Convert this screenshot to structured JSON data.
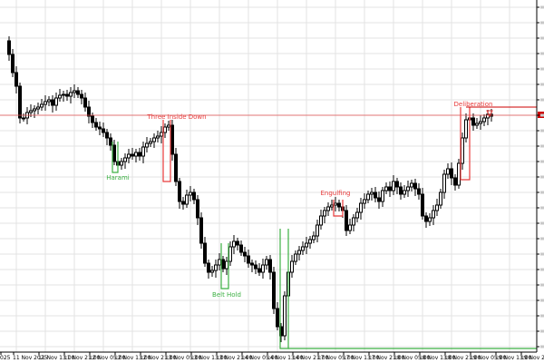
{
  "chart": {
    "background": "#ffffff",
    "grid_color": "#e3e3e3",
    "candle_color": "#000000",
    "bull_fill": "#ffffff",
    "bear_fill": "#000000",
    "bull_pattern_color": "#3cb043",
    "bear_pattern_color": "#e83a3a",
    "current_price_line_color": "#e05050",
    "resistance_line_color": "#cc0000",
    "x_labels": [
      "025",
      "11 Nov 2025",
      "11 Nov 13:00",
      "11 Nov 21:00",
      "12 Nov 05:00",
      "12 Nov 13:00",
      "12 Nov 21:00",
      "13 Nov 05:00",
      "13 Nov 13:00",
      "13 Nov 21:00",
      "14 Nov 05:00",
      "14 Nov 13:00",
      "14 Nov 21:00",
      "17 Nov 05:00",
      "17 Nov 13:00",
      "17 Nov 21:00",
      "18 Nov 05:00",
      "18 Nov 13:00",
      "18 Nov 21:00",
      "19 Nov 05:00",
      "19 Nov 13:00",
      "19 Nov 21:00"
    ],
    "x_labels_short": [
      "025",
      "11 Nov 2025",
      "11 Nov 13:00",
      "11 Nov 21:00",
      "12 Nov 05:00",
      "12 Nov 13:00",
      "12 Nov 21:00",
      "13 Nov 05:00",
      "13 Nov 13:00",
      "13 Nov 21:00",
      "14 Nov 05:00",
      "14 Nov 13:00",
      "14 Nov 21:00",
      "17 Nov 05:00",
      "17 Nov 13:00",
      "17 Nov 21:00",
      "18 Nov 05:00",
      "18 Nov 13:00",
      "18 Nov 21:00",
      "19 Nov 05:00",
      "19 Nov 13:00",
      "19 Nov 21:00"
    ],
    "patterns": [
      {
        "label": "Three Inside Down",
        "type": "bear"
      },
      {
        "label": "Harami",
        "type": "bull"
      },
      {
        "label": "Engulfing",
        "type": "bear"
      },
      {
        "label": "Belt Hold",
        "type": "bull"
      },
      {
        "label": "Deliberation",
        "type": "bear"
      }
    ]
  }
}
